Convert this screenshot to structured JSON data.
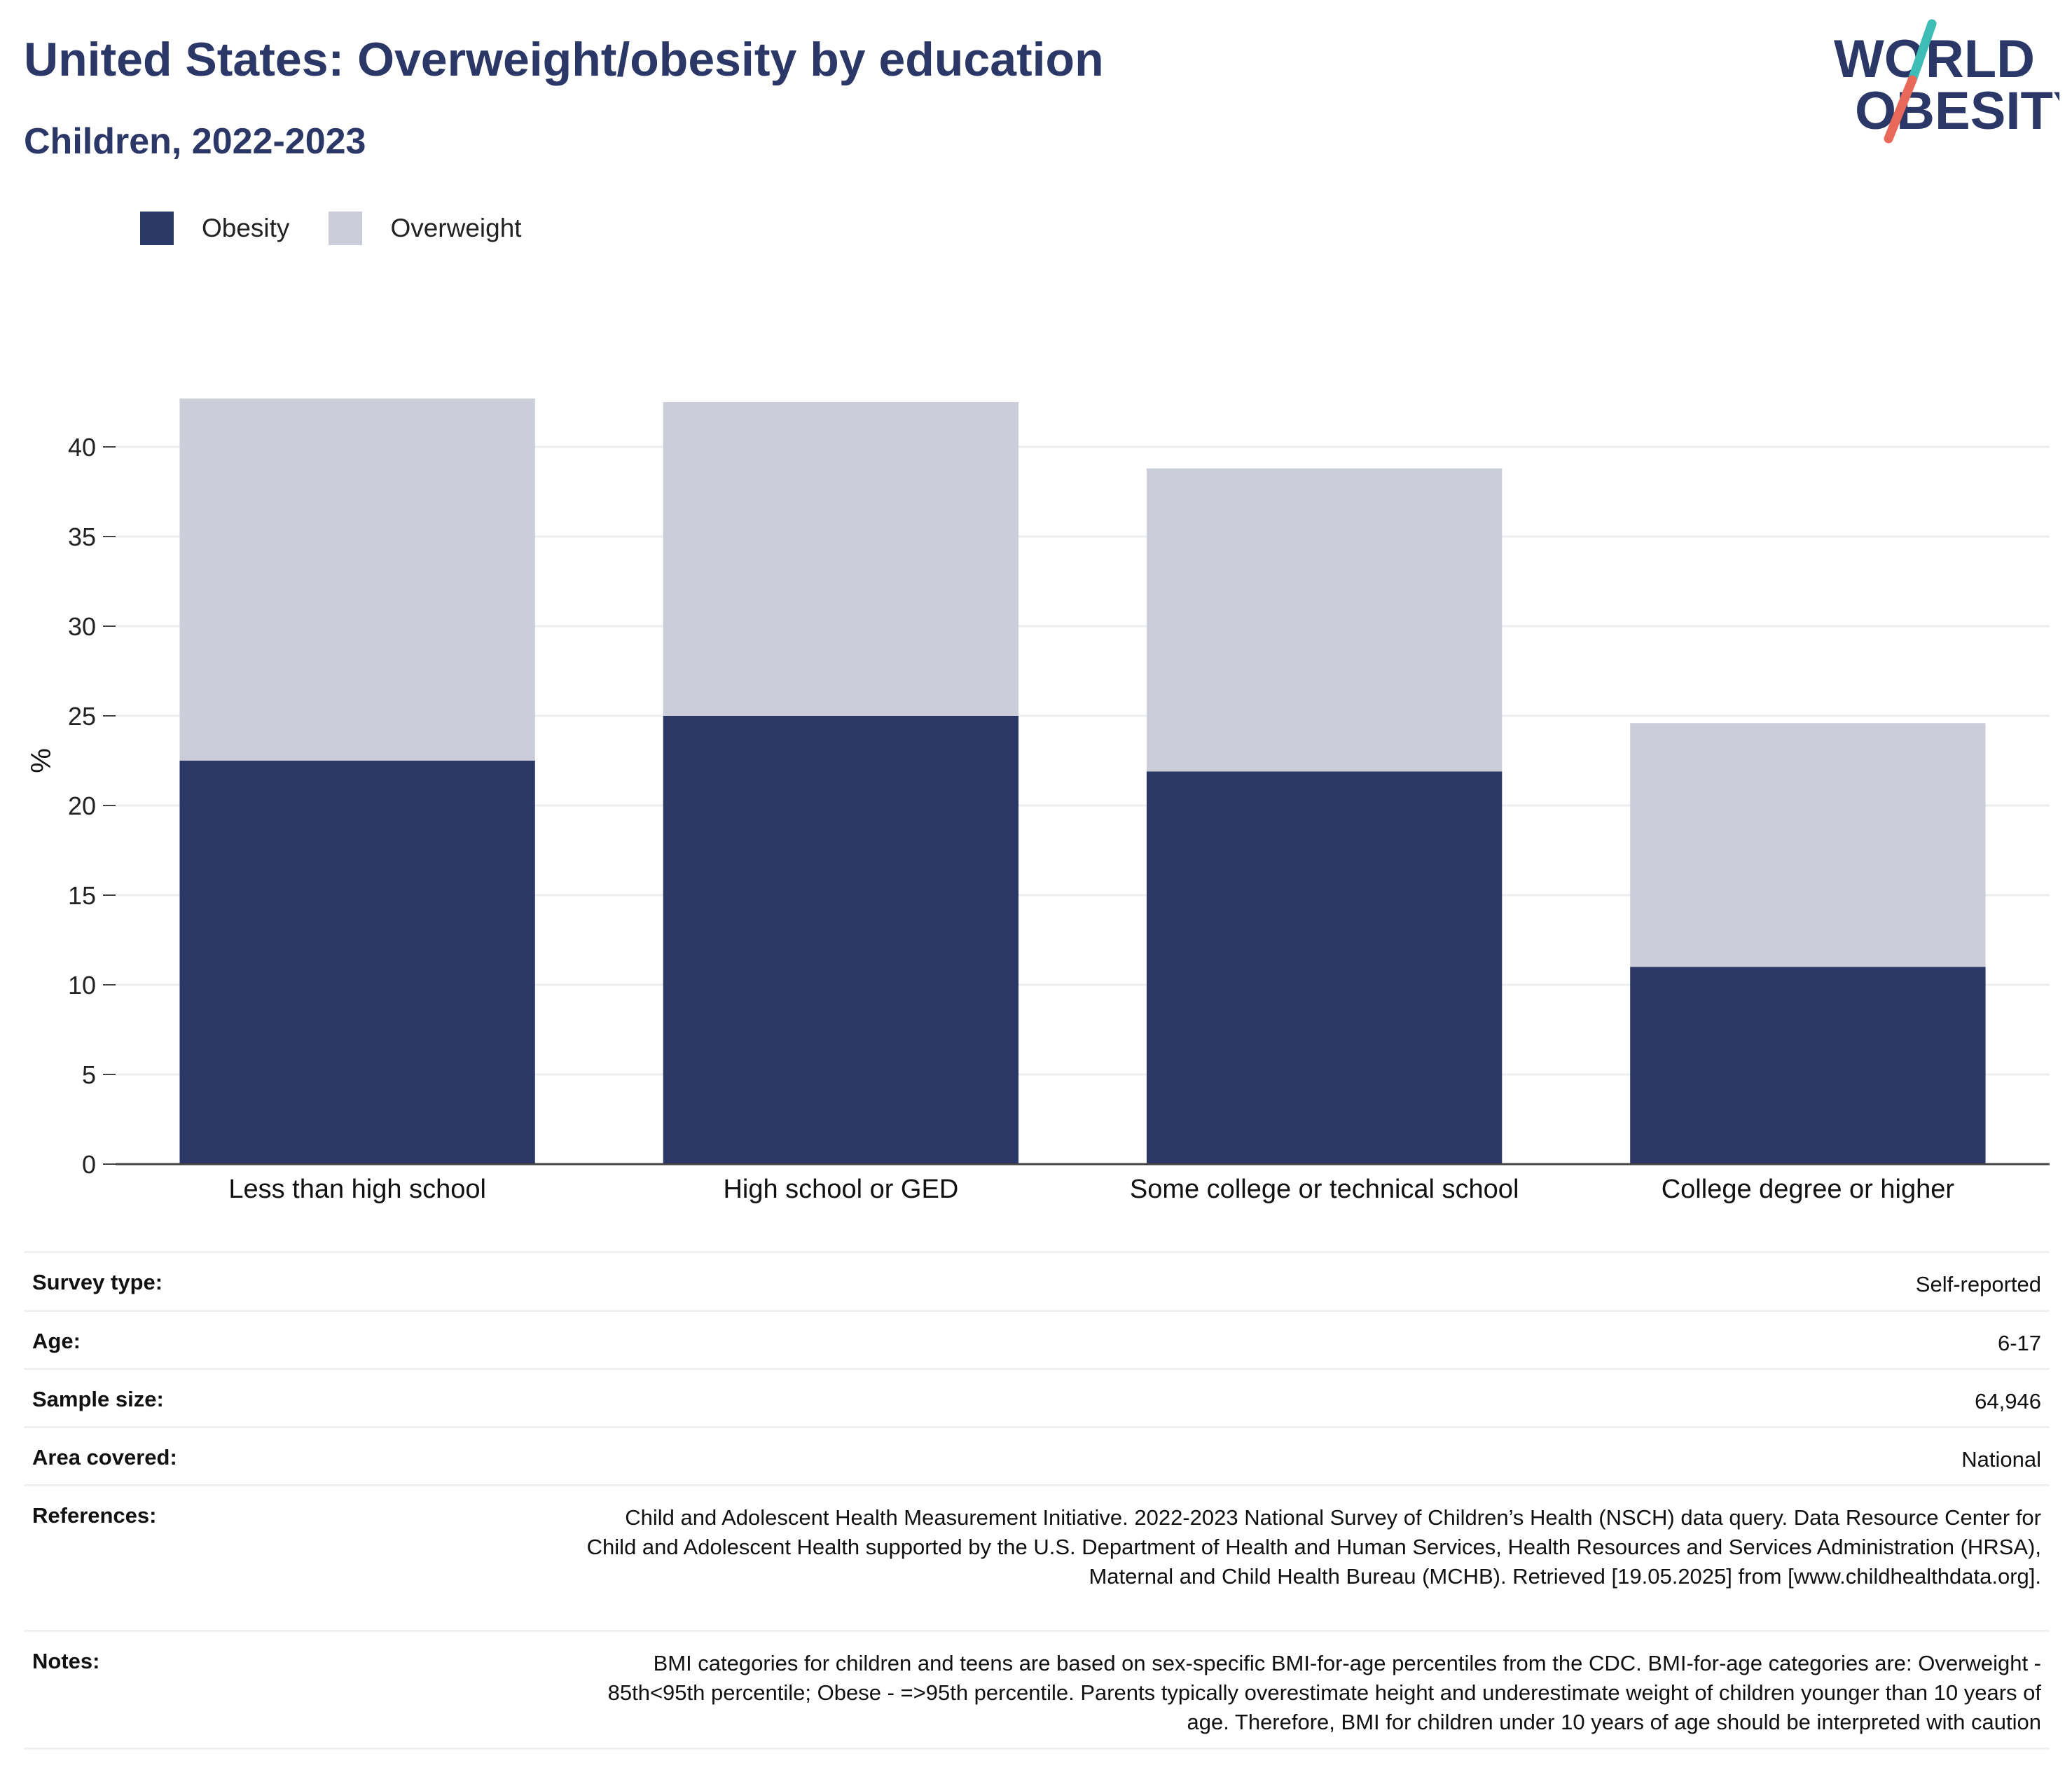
{
  "header": {
    "title": "United States: Overweight/obesity by education",
    "subtitle": "Children, 2022-2023"
  },
  "logo": {
    "line1": "WORLD",
    "line2": "OBESITY",
    "colors": {
      "text": "#2b3766",
      "teal": "#3ebcb6",
      "coral": "#e8685a"
    }
  },
  "legend": [
    {
      "label": "Obesity",
      "color": "#2b3764"
    },
    {
      "label": "Overweight",
      "color": "#cbcdd8"
    }
  ],
  "chart_data": {
    "type": "bar",
    "stacked": true,
    "categories": [
      "Less than high school",
      "High school or GED",
      "Some college or technical school",
      "College degree or higher"
    ],
    "series": [
      {
        "name": "Obesity",
        "color": "#2b3764",
        "values": [
          22.5,
          25.0,
          21.9,
          11.0
        ]
      },
      {
        "name": "Overweight",
        "color": "#cbcdd8",
        "values": [
          20.2,
          17.5,
          16.9,
          13.6
        ]
      }
    ],
    "ylabel": "%",
    "ylim": [
      0,
      45
    ],
    "yticks": [
      0,
      5,
      10,
      15,
      20,
      25,
      30,
      35,
      40
    ],
    "grid": true,
    "legend_position": "top-left"
  },
  "info": [
    {
      "key": "Survey type:",
      "value": "Self-reported"
    },
    {
      "key": "Age:",
      "value": "6-17"
    },
    {
      "key": "Sample size:",
      "value": "64,946"
    },
    {
      "key": "Area covered:",
      "value": "National"
    },
    {
      "key": "References:",
      "value": "Child and Adolescent Health Measurement Initiative. 2022-2023 National Survey of Children’s Health (NSCH) data query. Data Resource Center for Child and Adolescent Health supported by the U.S. Department of Health and Human Services, Health Resources and Services Administration (HRSA), Maternal and Child Health Bureau (MCHB). Retrieved [19.05.2025] from [www.childhealthdata.org]."
    },
    {
      "key": "Notes:",
      "value": "BMI categories for children and teens are based on sex-specific BMI-for-age percentiles from the CDC. BMI-for-age categories are: Overweight - 85th<95th percentile; Obese - =>95th percentile. Parents typically overestimate height and underestimate weight of children younger than 10 years of age. Therefore, BMI for children under 10 years of age should be interpreted with caution"
    }
  ]
}
